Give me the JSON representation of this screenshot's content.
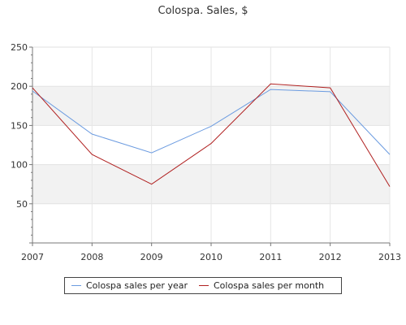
{
  "chart_data": {
    "type": "line",
    "title": "Colospa. Sales, $",
    "xlabel": "",
    "ylabel": "",
    "categories": [
      "2007",
      "2008",
      "2009",
      "2010",
      "2011",
      "2012",
      "2013"
    ],
    "ylim": [
      0,
      250
    ],
    "yticks": [
      50,
      100,
      150,
      200,
      250
    ],
    "grid": true,
    "legend_position": "bottom",
    "series": [
      {
        "name": "Colospa sales per year",
        "color": "#6b9be0",
        "values": [
          194,
          139,
          115,
          149,
          196,
          193,
          113
        ]
      },
      {
        "name": "Colospa sales per month",
        "color": "#b02020",
        "values": [
          198,
          113,
          75,
          127,
          203,
          198,
          72
        ]
      }
    ]
  }
}
